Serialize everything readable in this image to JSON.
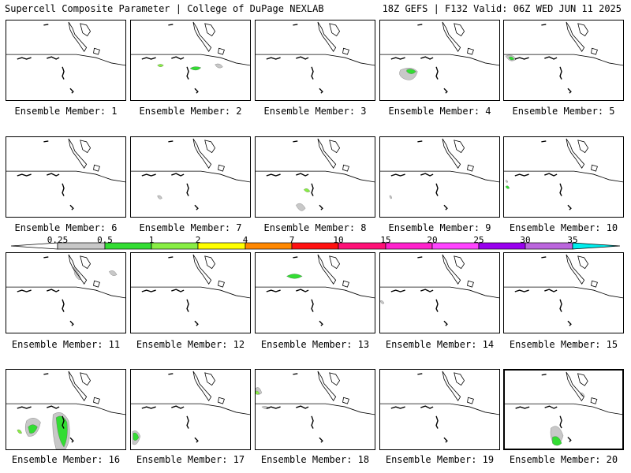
{
  "header": {
    "left": "Supercell Composite Parameter | College of DuPage NEXLAB",
    "right": "18Z GEFS | F132 Valid: 06Z WED JUN 11 2025"
  },
  "panel_label_prefix": "Ensemble Member:",
  "members": [
    "1",
    "2",
    "3",
    "4",
    "5",
    "6",
    "7",
    "8",
    "9",
    "10",
    "11",
    "12",
    "13",
    "14",
    "15",
    "16",
    "17",
    "18",
    "19",
    "20"
  ],
  "colorbar": {
    "labels": [
      "0.25",
      "0.5",
      "1",
      "2",
      "4",
      "7",
      "10",
      "15",
      "20",
      "25",
      "30",
      "35"
    ],
    "colors": [
      "#ffffff",
      "#c8c8c8",
      "#33dd33",
      "#88ee44",
      "#ffff00",
      "#ff8800",
      "#ff1111",
      "#ff1177",
      "#ff22cc",
      "#ff44ff",
      "#9900ee",
      "#bb66dd",
      "#00eeee"
    ]
  },
  "colors": {
    "outline": "#000000",
    "low": "#c8c8c8",
    "green": "#33dd33",
    "lightgreen": "#88ee44"
  }
}
